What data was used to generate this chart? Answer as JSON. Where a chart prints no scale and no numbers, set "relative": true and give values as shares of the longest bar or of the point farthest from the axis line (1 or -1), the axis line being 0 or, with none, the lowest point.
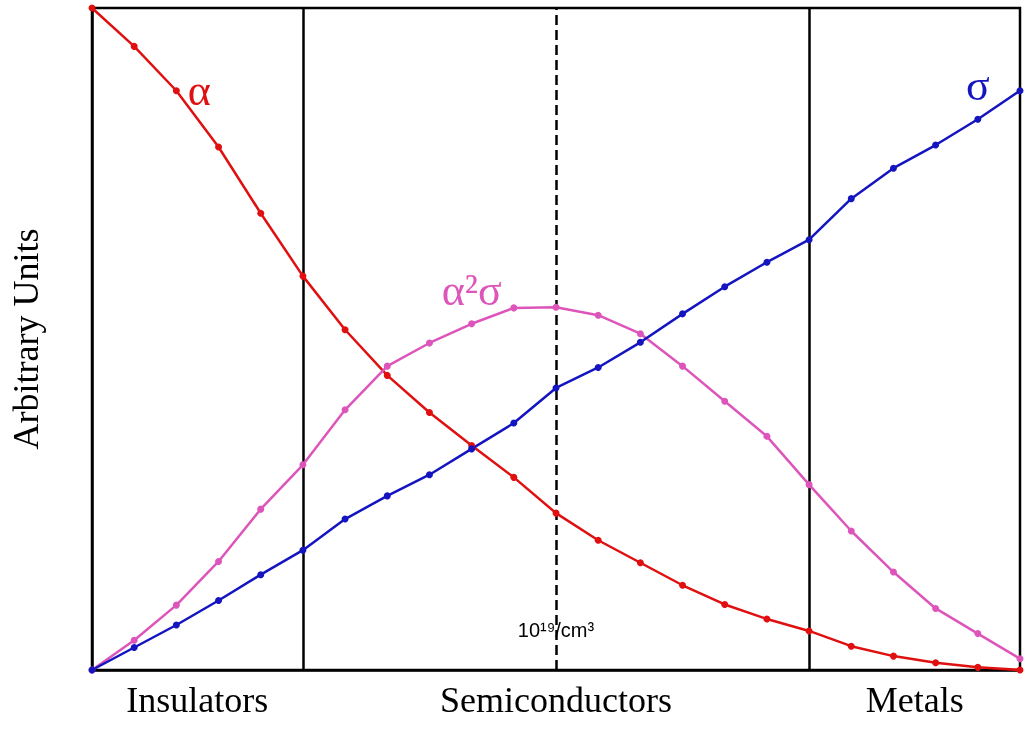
{
  "chart_data": {
    "type": "line",
    "relative": true,
    "ylabel": "Arbitrary Units",
    "marker": "circle",
    "line_style": "solid",
    "grid": false,
    "legend": false,
    "categories": [
      null,
      null,
      null,
      null,
      null,
      null,
      null,
      null,
      null,
      null,
      null,
      null,
      null,
      null,
      null,
      null,
      null,
      null,
      null,
      null,
      null,
      null,
      null
    ],
    "series": [
      {
        "name": "α",
        "color": "#e01010",
        "values": [
          1.0,
          0.942,
          0.875,
          0.79,
          0.69,
          0.595,
          0.514,
          0.445,
          0.389,
          0.339,
          0.291,
          0.237,
          0.196,
          0.162,
          0.128,
          0.099,
          0.077,
          0.059,
          0.036,
          0.021,
          0.011,
          0.004,
          0.0
        ]
      },
      {
        "name": "α²σ",
        "color": "#dd55bb",
        "values": [
          0.0,
          0.045,
          0.098,
          0.164,
          0.243,
          0.31,
          0.393,
          0.459,
          0.494,
          0.523,
          0.547,
          0.548,
          0.536,
          0.508,
          0.459,
          0.406,
          0.353,
          0.28,
          0.21,
          0.148,
          0.093,
          0.055,
          0.017
        ]
      },
      {
        "name": "σ",
        "color": "#1414c0",
        "values": [
          0.0,
          0.034,
          0.068,
          0.105,
          0.144,
          0.181,
          0.228,
          0.263,
          0.295,
          0.334,
          0.373,
          0.426,
          0.457,
          0.495,
          0.538,
          0.579,
          0.616,
          0.65,
          0.712,
          0.758,
          0.793,
          0.832,
          0.875
        ]
      }
    ],
    "annotations": [
      "Insulators",
      "Semiconductors",
      "Metals",
      "10¹⁹/cm³"
    ]
  }
}
